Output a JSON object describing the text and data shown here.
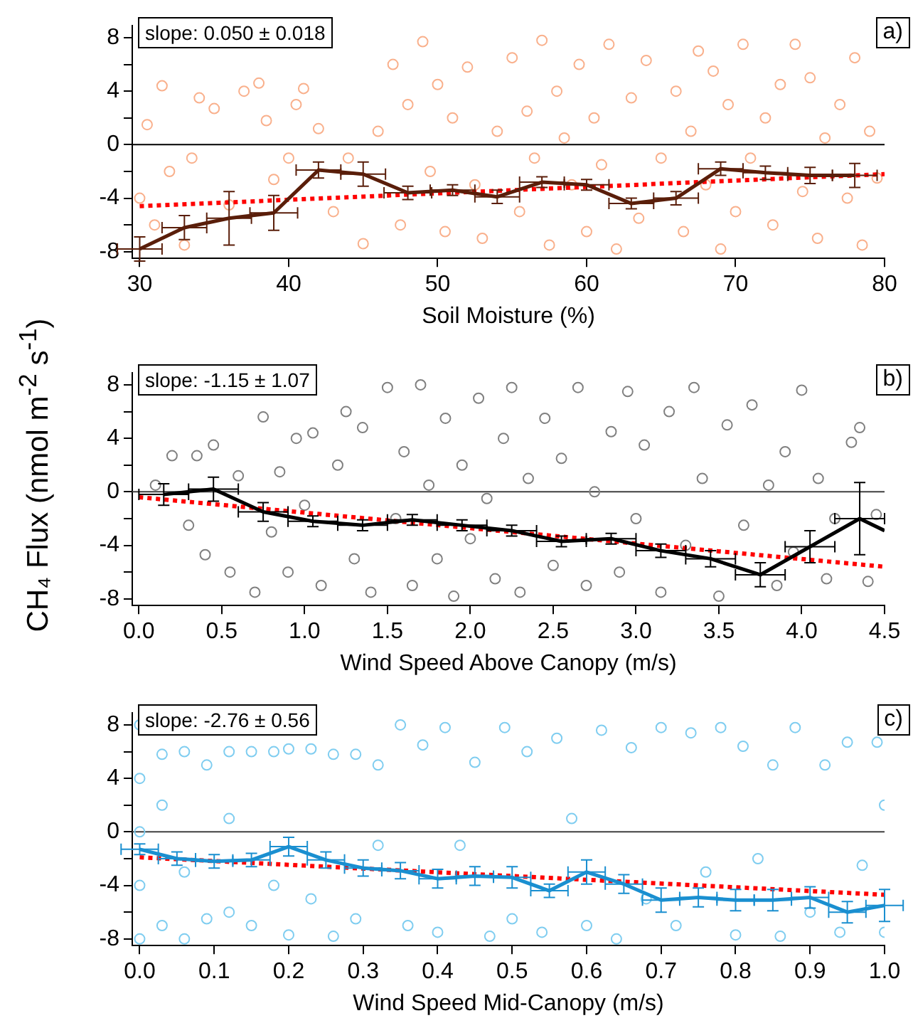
{
  "chart_data": [
    {
      "type": "scatter",
      "xlabel": "Soil Moisture (%)",
      "annotations": [
        "slope: 0.050 ± 0.018",
        "a)"
      ],
      "xlim": [
        29.5,
        80
      ],
      "ylim": [
        -8.5,
        8.9
      ],
      "xticks": [
        30,
        40,
        50,
        60,
        70,
        80
      ],
      "yticks": [
        -8,
        {
          "value": -6,
          "label": null
        },
        -4,
        {
          "value": -2,
          "label": null
        },
        0,
        {
          "value": 2,
          "label": null
        },
        4,
        {
          "value": 6,
          "label": null
        },
        8
      ],
      "ref_lines": [
        {
          "axis": "y",
          "value": 0,
          "color": "#000000"
        }
      ],
      "series": [
        {
          "type": "scatter",
          "marker": "circle",
          "color": "#f9b08c",
          "x": [
            30,
            30.5,
            31,
            31.5,
            32,
            33,
            33.5,
            34,
            35,
            36,
            37,
            38,
            38.5,
            39,
            40,
            40.5,
            41,
            42,
            43,
            44,
            45,
            46,
            47,
            47.5,
            48,
            49,
            49.5,
            50,
            50.5,
            51,
            52,
            52.5,
            53,
            54,
            55,
            55.5,
            56,
            56.5,
            57,
            57.5,
            58,
            58.5,
            59,
            59.5,
            60,
            60.5,
            61,
            61.5,
            62,
            63,
            63.5,
            64,
            65,
            66,
            66.5,
            67,
            67.5,
            68,
            68.5,
            69,
            69.5,
            70,
            70.5,
            71,
            72,
            72.5,
            73,
            74,
            74.5,
            75,
            75.5,
            76,
            77,
            77.5,
            78,
            78.5,
            79,
            79.5
          ],
          "values": [
            -4,
            1.5,
            -6,
            4.4,
            -2,
            -7.5,
            -1,
            3.5,
            2.7,
            -4.5,
            4,
            4.6,
            1.8,
            -2.6,
            -1,
            3,
            4.2,
            1.2,
            -5,
            -1,
            -7.4,
            1,
            6,
            -6,
            3,
            7.7,
            -2,
            4.5,
            -6.5,
            2,
            5.8,
            -3,
            -7,
            1,
            6.5,
            -5,
            2.5,
            -1,
            7.8,
            -7.5,
            4,
            0.5,
            -3,
            6,
            -6.5,
            2,
            -1.5,
            7.5,
            -7.8,
            3.5,
            -5.5,
            6.3,
            -1,
            4,
            -6.5,
            1,
            7,
            -3,
            5.5,
            -7.8,
            3,
            -5,
            7.5,
            -1,
            2,
            -6,
            4.5,
            7.5,
            -3.5,
            5,
            -7,
            0.5,
            3,
            -4,
            6.5,
            -7.5,
            1,
            -2.5
          ]
        },
        {
          "type": "line",
          "color": "#5a1e0a",
          "x": [
            30,
            33,
            36,
            39,
            42,
            45,
            48,
            51,
            54,
            57,
            60,
            63,
            66,
            69,
            72,
            75,
            78
          ],
          "values": [
            -7.8,
            -6.2,
            -5.5,
            -5.1,
            -1.9,
            -2.2,
            -3.6,
            -3.4,
            -3.9,
            -2.8,
            -3.0,
            -4.4,
            -4.0,
            -1.8,
            -2.1,
            -2.3,
            -2.3
          ],
          "errors": [
            0.9,
            0.9,
            2,
            1.3,
            0.6,
            0.9,
            0.5,
            0.4,
            0.5,
            0.4,
            0.4,
            0.4,
            0.5,
            0.5,
            0.5,
            0.6,
            0.9
          ],
          "xerrors": [
            1.5,
            1.5,
            1.5,
            1.6,
            1.5,
            1.5,
            1.6,
            1.5,
            1.5,
            1.5,
            1.5,
            1.5,
            1.5,
            1.5,
            1.5,
            1.5,
            1.5
          ]
        },
        {
          "type": "line",
          "marker": "none",
          "line_style": "dotted",
          "color": "#ff0000",
          "x": [
            30,
            80
          ],
          "values": [
            -4.6,
            -2.2
          ]
        }
      ]
    },
    {
      "type": "scatter",
      "xlabel": "Wind Speed Above Canopy (m/s)",
      "ylabel": "CH₄ Flux (nmol m$^{-2}$ s$^{-1}$)",
      "annotations": [
        "slope: -1.15 ± 1.07",
        "b)"
      ],
      "xlim": [
        -0.04,
        4.5
      ],
      "ylim": [
        -8.5,
        8.9
      ],
      "xticks": [
        {
          "value": 0,
          "label": "0.0"
        },
        0.5,
        {
          "value": 1,
          "label": "1.0"
        },
        1.5,
        {
          "value": 2,
          "label": "2.0"
        },
        2.5,
        {
          "value": 3,
          "label": "3.0"
        },
        3.5,
        {
          "value": 4,
          "label": "4.0"
        },
        4.5
      ],
      "yticks": [
        -8,
        {
          "value": -6,
          "label": null
        },
        -4,
        {
          "value": -2,
          "label": null
        },
        0,
        {
          "value": 2,
          "label": null
        },
        4,
        {
          "value": 6,
          "label": null
        },
        8
      ],
      "ref_lines": [
        {
          "axis": "y",
          "value": 0,
          "color": "#404040"
        }
      ],
      "series": [
        {
          "type": "scatter",
          "marker": "circle",
          "color": "#808080",
          "x": [
            0.1,
            0.2,
            0.3,
            0.35,
            0.4,
            0.45,
            0.55,
            0.6,
            0.7,
            0.75,
            0.8,
            0.85,
            0.9,
            0.95,
            1.0,
            1.05,
            1.1,
            1.2,
            1.25,
            1.3,
            1.35,
            1.4,
            1.5,
            1.55,
            1.6,
            1.65,
            1.7,
            1.75,
            1.8,
            1.85,
            1.9,
            1.95,
            2.0,
            2.05,
            2.1,
            2.15,
            2.2,
            2.25,
            2.3,
            2.35,
            2.45,
            2.5,
            2.55,
            2.65,
            2.7,
            2.75,
            2.85,
            2.9,
            2.95,
            3.0,
            3.05,
            3.15,
            3.2,
            3.3,
            3.35,
            3.4,
            3.5,
            3.55,
            3.65,
            3.7,
            3.8,
            3.85,
            3.9,
            3.95,
            4.0,
            4.1,
            4.15,
            4.2,
            4.3,
            4.35,
            4.4,
            4.45
          ],
          "values": [
            0.5,
            2.7,
            -2.5,
            2.7,
            -4.7,
            3.5,
            -6,
            1.2,
            -7.5,
            5.6,
            -3,
            1.5,
            -6,
            4,
            -1,
            4.4,
            -7,
            2,
            6,
            -5,
            4.8,
            -7.5,
            7.8,
            -2,
            3,
            -7,
            8,
            0.5,
            -5,
            5.5,
            -7.8,
            2,
            -3.5,
            7,
            -0.5,
            -6.5,
            4,
            7.8,
            -7.5,
            1,
            5.5,
            -5.5,
            2.5,
            7.8,
            -7,
            0,
            4.5,
            -6,
            7.5,
            -2,
            3.5,
            -7.5,
            6,
            -4,
            7.8,
            1,
            -7.8,
            5,
            -2.5,
            6.5,
            0.5,
            -7,
            3,
            -4.5,
            7.6,
            1,
            -6.5,
            -2,
            3.7,
            4.8,
            -6.7,
            -1.7
          ]
        },
        {
          "type": "line",
          "color": "#000000",
          "x": [
            0.15,
            0.45,
            0.75,
            1.05,
            1.35,
            1.65,
            1.95,
            2.25,
            2.55,
            2.85,
            3.15,
            3.45,
            3.75,
            4.05,
            4.35,
            4.5
          ],
          "values": [
            -0.2,
            0.2,
            -1.5,
            -2.2,
            -2.5,
            -2.1,
            -2.5,
            -2.9,
            -3.7,
            -3.5,
            -4.4,
            -5.0,
            -6.2,
            -4.1,
            -2.0,
            -2.9
          ],
          "errors": [
            0.8,
            0.9,
            0.7,
            0.4,
            0.4,
            0.4,
            0.4,
            0.4,
            0.4,
            0.4,
            0.5,
            0.6,
            0.9,
            1.2,
            2.7,
            null
          ],
          "xerrors": [
            0.15,
            0.15,
            0.15,
            0.15,
            0.15,
            0.15,
            0.15,
            0.15,
            0.15,
            0.15,
            0.15,
            0.15,
            0.15,
            0.15,
            0.15,
            null
          ]
        },
        {
          "type": "line",
          "marker": "none",
          "line_style": "dotted",
          "color": "#ff0000",
          "x": [
            0,
            4.5
          ],
          "values": [
            -0.4,
            -5.6
          ]
        }
      ]
    },
    {
      "type": "scatter",
      "xlabel": "Wind Speed Mid-Canopy (m/s)",
      "annotations": [
        "slope: -2.76 ± 0.56",
        "c)"
      ],
      "xlim": [
        -0.01,
        1
      ],
      "ylim": [
        -8.5,
        8.9
      ],
      "xticks": [
        {
          "value": 0,
          "label": "0.0"
        },
        0.1,
        0.2,
        0.3,
        0.4,
        0.5,
        0.6,
        0.7,
        0.8,
        0.9,
        {
          "value": 1,
          "label": "1.0"
        }
      ],
      "yticks": [
        -8,
        {
          "value": -6,
          "label": null
        },
        -4,
        {
          "value": -2,
          "label": null
        },
        0,
        {
          "value": 2,
          "label": null
        },
        4,
        {
          "value": 6,
          "label": null
        },
        8
      ],
      "ref_lines": [
        {
          "axis": "y",
          "value": 0,
          "color": "#404040"
        }
      ],
      "series": [
        {
          "type": "scatter",
          "marker": "circle",
          "color": "#7fcdf0",
          "x": [
            0,
            0,
            0,
            0,
            0,
            0.03,
            0.03,
            0.03,
            0.06,
            0.06,
            0.06,
            0.09,
            0.09,
            0.12,
            0.12,
            0.12,
            0.15,
            0.15,
            0.18,
            0.18,
            0.2,
            0.2,
            0.23,
            0.23,
            0.26,
            0.26,
            0.29,
            0.29,
            0.32,
            0.32,
            0.35,
            0.36,
            0.38,
            0.4,
            0.41,
            0.43,
            0.45,
            0.47,
            0.49,
            0.5,
            0.52,
            0.54,
            0.56,
            0.58,
            0.6,
            0.62,
            0.64,
            0.66,
            0.68,
            0.7,
            0.72,
            0.74,
            0.76,
            0.78,
            0.8,
            0.81,
            0.83,
            0.85,
            0.86,
            0.88,
            0.9,
            0.92,
            0.94,
            0.95,
            0.97,
            0.99,
            1.0,
            1.0
          ],
          "values": [
            8,
            4,
            0,
            -4,
            -8,
            5.8,
            -7,
            2,
            6,
            -8,
            -3,
            5,
            -6.5,
            6,
            -6,
            1,
            6,
            -7,
            6,
            -4,
            6.2,
            -7.7,
            6.2,
            -5,
            5.8,
            -7.8,
            5.8,
            -6.5,
            5,
            -1,
            8,
            -7,
            6.5,
            -7.5,
            7.8,
            -1,
            5.2,
            -7.8,
            7.8,
            -6.5,
            6,
            -7.5,
            7,
            1,
            -7,
            7.6,
            -8,
            6.3,
            -5,
            7.8,
            -7,
            7.4,
            -3,
            7.8,
            -7.7,
            6.4,
            -2,
            5,
            -7.8,
            7.8,
            -6,
            5,
            -7.5,
            6.7,
            -2.5,
            6.7,
            -7.5,
            2
          ]
        },
        {
          "type": "line",
          "color": "#1a8fd0",
          "x": [
            0,
            0.05,
            0.1,
            0.15,
            0.2,
            0.25,
            0.3,
            0.35,
            0.4,
            0.45,
            0.5,
            0.55,
            0.6,
            0.65,
            0.7,
            0.75,
            0.8,
            0.85,
            0.9,
            0.95,
            1.0
          ],
          "values": [
            -1.3,
            -2.0,
            -2.2,
            -2.1,
            -1.1,
            -2.1,
            -2.7,
            -2.9,
            -3.5,
            -3.3,
            -3.4,
            -4.4,
            -3.0,
            -3.9,
            -5.1,
            -4.9,
            -5.1,
            -5.1,
            -4.9,
            -6.0,
            -5.5
          ],
          "errors": [
            0.4,
            0.5,
            0.5,
            0.5,
            0.7,
            0.6,
            0.6,
            0.6,
            0.7,
            0.7,
            0.8,
            0.5,
            0.9,
            0.7,
            0.9,
            0.7,
            0.8,
            0.8,
            0.8,
            0.8,
            1.2
          ],
          "xerrors": [
            0.025,
            0.025,
            0.025,
            0.025,
            0.025,
            0.025,
            0.025,
            0.025,
            0.025,
            0.025,
            0.025,
            0.025,
            0.025,
            0.025,
            0.025,
            0.025,
            0.025,
            0.025,
            0.025,
            0.025,
            0.025
          ]
        },
        {
          "type": "line",
          "marker": "none",
          "line_style": "dotted",
          "color": "#ff0000",
          "x": [
            0,
            1
          ],
          "values": [
            -1.9,
            -4.7
          ]
        }
      ]
    }
  ]
}
